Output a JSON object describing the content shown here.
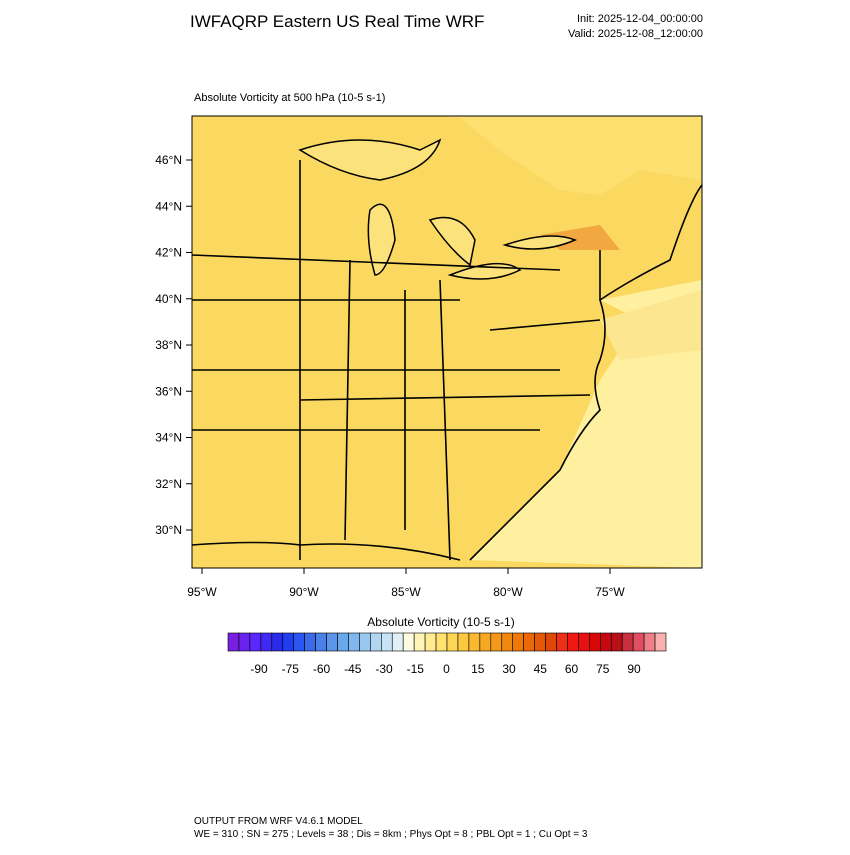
{
  "header": {
    "title": "IWFAQRP Eastern US Real Time WRF",
    "init": "Init: 2025-12-04_00:00:00",
    "valid": "Valid: 2025-12-08_12:00:00"
  },
  "map": {
    "subtitle": "Absolute Vorticity at 500 hPa   (10-5 s-1)",
    "lat_labels": [
      "46°N",
      "44°N",
      "42°N",
      "40°N",
      "38°N",
      "36°N",
      "34°N",
      "32°N",
      "30°N"
    ],
    "lon_labels": [
      "95°W",
      "90°W",
      "85°W",
      "80°W",
      "75°W"
    ]
  },
  "colorbar": {
    "title": "Absolute Vorticity  (10-5 s-1)",
    "labels": [
      "-90",
      "-75",
      "-60",
      "-45",
      "-30",
      "-15",
      "0",
      "15",
      "30",
      "45",
      "60",
      "75",
      "90"
    ],
    "colors": [
      "#7a1fe0",
      "#6a22f0",
      "#5a28ff",
      "#3f2af5",
      "#2a2ae8",
      "#1e3ef0",
      "#2a55f0",
      "#3a6ae8",
      "#4a80e8",
      "#5a95ea",
      "#6aa8ec",
      "#80b8ee",
      "#98c8f0",
      "#b0d6f2",
      "#c8e4f4",
      "#e0f0f6",
      "#fffbe0",
      "#fff4b8",
      "#ffec90",
      "#ffe270",
      "#fdd655",
      "#fbc840",
      "#f8b830",
      "#f5a820",
      "#f39818",
      "#f08810",
      "#ee7808",
      "#ea6808",
      "#e55808",
      "#e04808",
      "#ee3018",
      "#f01810",
      "#e81010",
      "#d80808",
      "#c80810",
      "#b81018",
      "#c83040",
      "#e05060",
      "#f08088",
      "#f8b0b0"
    ]
  },
  "footer": {
    "line1": "OUTPUT FROM WRF V4.6.1 MODEL",
    "line2": "WE = 310 ; SN = 275 ; Levels = 38 ; Dis = 8km ; Phys Opt = 8 ; PBL Opt = 1 ; Cu Opt = 3"
  }
}
